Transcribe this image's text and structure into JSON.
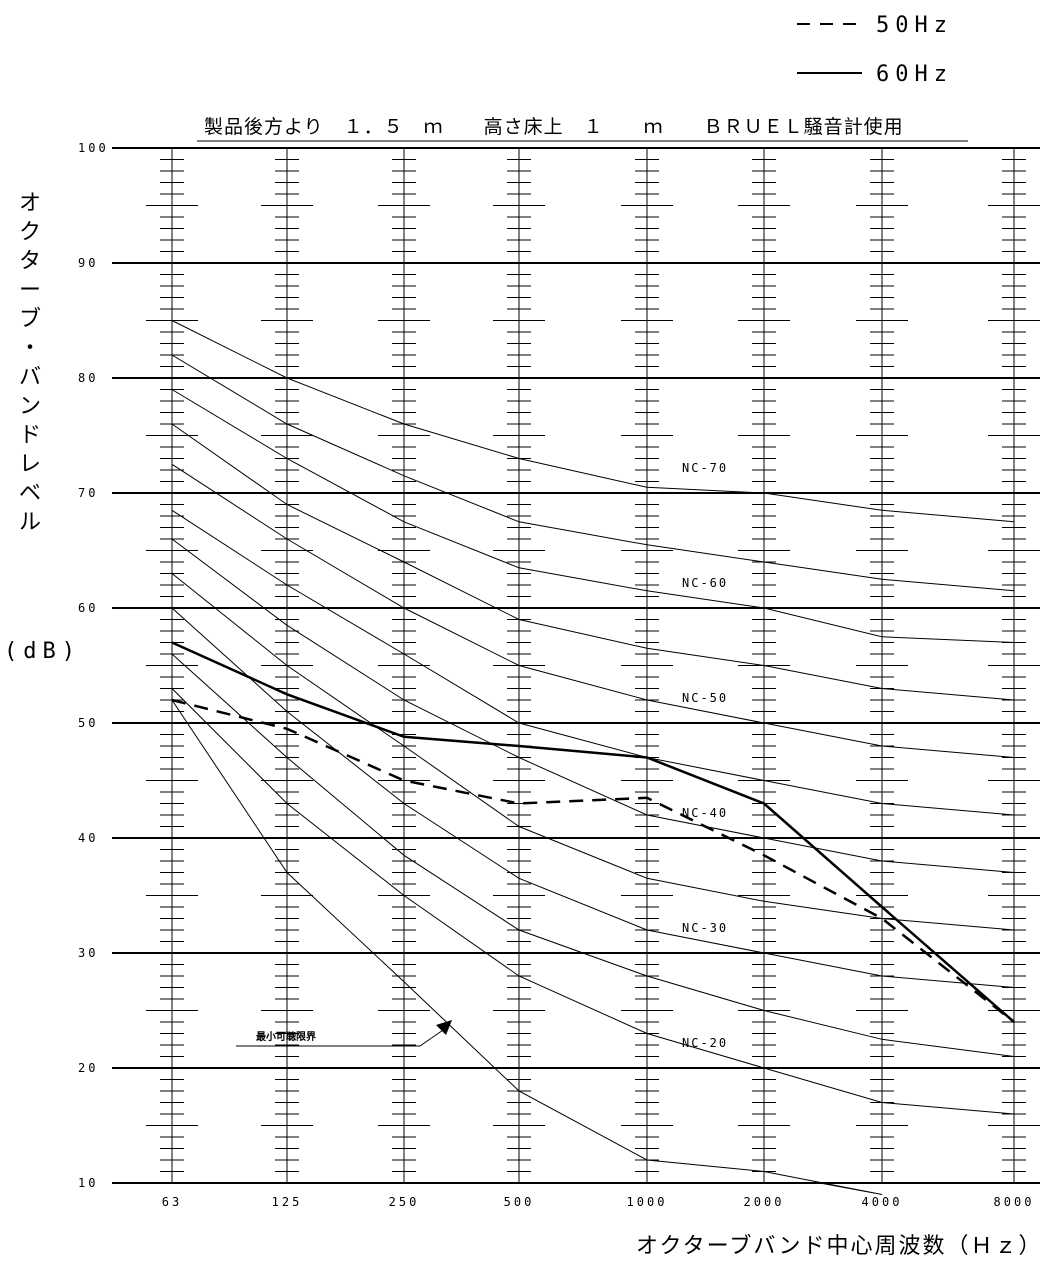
{
  "chart_data": {
    "type": "line",
    "title": "製品後方より　１．５　ｍ　　高さ床上　１　　ｍ　　ＢＲＵＥＬ騒音計使用",
    "xlabel": "オクターブバンド中心周波数（Ｈｚ）",
    "ylabel": "オクターブ・バンドレベル",
    "ylabel_unit": "(dB)",
    "categories": [
      "63",
      "125",
      "250",
      "500",
      "1000",
      "2000",
      "4000",
      "8000"
    ],
    "y_ticks": [
      "100",
      "90",
      "80",
      "70",
      "60",
      "50",
      "40",
      "30",
      "20",
      "10"
    ],
    "ylim": [
      10,
      100
    ],
    "grid": true,
    "legend_position": "top-right",
    "legend": [
      {
        "label": "50Hz",
        "style": "dashed"
      },
      {
        "label": "60Hz",
        "style": "solid"
      }
    ],
    "series": [
      {
        "name": "50Hz",
        "style": "dashed",
        "values": [
          52,
          49.5,
          45,
          43,
          43.5,
          38.5,
          33,
          24
        ]
      },
      {
        "name": "60Hz",
        "style": "solid",
        "values": [
          57,
          52.5,
          48.8,
          48,
          47,
          43,
          34,
          24
        ]
      }
    ],
    "nc_curves": [
      {
        "label": "NC-70",
        "values": [
          85,
          80,
          76,
          73,
          70.5,
          70,
          68.5,
          67.5
        ]
      },
      {
        "label": "",
        "values": [
          82,
          76,
          71.5,
          67.5,
          65.5,
          64,
          62.5,
          61.5
        ]
      },
      {
        "label": "NC-60",
        "values": [
          79,
          73,
          67.5,
          63.5,
          61.5,
          60,
          57.5,
          57
        ]
      },
      {
        "label": "",
        "values": [
          76,
          69,
          64,
          59,
          56.5,
          55,
          53,
          52
        ]
      },
      {
        "label": "NC-50",
        "values": [
          72.5,
          66,
          60,
          55,
          52,
          50,
          48,
          47
        ]
      },
      {
        "label": "",
        "values": [
          68.5,
          62,
          56,
          50,
          47,
          45,
          43,
          42
        ]
      },
      {
        "label": "NC-40",
        "values": [
          66,
          58.5,
          52,
          47,
          42,
          40,
          38,
          37
        ]
      },
      {
        "label": "",
        "values": [
          63,
          55,
          48,
          41,
          36.5,
          34.5,
          33,
          32
        ]
      },
      {
        "label": "NC-30",
        "values": [
          60,
          51,
          43,
          36.5,
          32,
          30,
          28,
          27
        ]
      },
      {
        "label": "",
        "values": [
          56,
          47,
          38.5,
          32,
          28,
          25,
          22.5,
          21
        ]
      },
      {
        "label": "NC-20",
        "values": [
          53,
          43,
          35,
          28,
          23,
          20,
          17,
          16
        ]
      },
      {
        "label": "最小可聴限界",
        "values": [
          52,
          37,
          27.5,
          18,
          12,
          11,
          9,
          null
        ]
      }
    ],
    "annotations": [
      {
        "text": "最小可聴限界",
        "target": "threshold-curve"
      }
    ]
  }
}
